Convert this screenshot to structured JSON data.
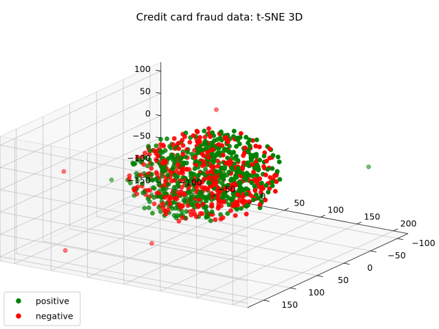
{
  "chart_data": {
    "type": "scatter",
    "title": "Credit card fraud data: t-SNE 3D",
    "projection": "3d",
    "grid": true,
    "legend_placement": "lower-left",
    "xlabel": "",
    "ylabel": "",
    "zlabel": "",
    "axes": {
      "x": {
        "lim": [
          -120,
          220
        ],
        "ticks": [
          -100,
          -50,
          0,
          50,
          100,
          150,
          200
        ],
        "tick_labels": [
          "−100",
          "−50",
          "0",
          "50",
          "100",
          "150",
          "200"
        ]
      },
      "y": {
        "lim": [
          -120,
          180
        ],
        "ticks": [
          -100,
          -50,
          0,
          50,
          100,
          150
        ],
        "tick_labels": [
          "−100",
          "−50",
          "0",
          "50",
          "100",
          "150"
        ]
      },
      "z": {
        "lim": [
          -160,
          120
        ],
        "ticks": [
          -150,
          -100,
          -50,
          0,
          50,
          100
        ],
        "tick_labels": [
          "−150",
          "−100",
          "−50",
          "0",
          "50",
          "100"
        ]
      }
    },
    "series": [
      {
        "name": "positive",
        "color": "#008000",
        "cluster": {
          "center": [
            50,
            30,
            0
          ],
          "radius": 90,
          "count": 520
        },
        "outliers": [
          [
            210,
            -60,
            20
          ],
          [
            -70,
            40,
            -40
          ]
        ]
      },
      {
        "name": "negative",
        "color": "#ff0000",
        "cluster": {
          "center": [
            50,
            30,
            0
          ],
          "radius": 90,
          "count": 400
        },
        "outliers": [
          [
            -40,
            170,
            60
          ],
          [
            -60,
            140,
            -140
          ],
          [
            0,
            60,
            -150
          ],
          [
            30,
            -20,
            115
          ]
        ]
      }
    ]
  }
}
